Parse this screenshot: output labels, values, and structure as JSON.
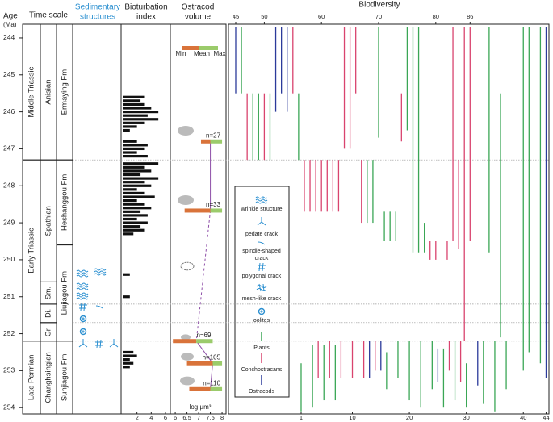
{
  "chart_data": {
    "type": "stratigraphic",
    "age_label": "Age",
    "age_unit": "(Ma)",
    "ylim": [
      243.63,
      254.17
    ],
    "yticks": [
      244,
      245,
      246,
      247,
      248,
      249,
      250,
      251,
      252,
      253,
      254
    ],
    "time_scale": {
      "title": "Time scale",
      "periods": [
        {
          "label": "Middle Triassic",
          "from": 243.63,
          "to": 247.3
        },
        {
          "label": "Early Triassic",
          "from": 247.3,
          "to": 252.2
        },
        {
          "label": "Late Permian",
          "from": 252.2,
          "to": 254.17
        }
      ],
      "stages": [
        {
          "label": "Anisian",
          "from": 243.63,
          "to": 247.3
        },
        {
          "label": "Spathian",
          "from": 247.3,
          "to": 250.6
        },
        {
          "label": "Changhsingian",
          "from": 252.2,
          "to": 254.17
        }
      ],
      "members": [
        {
          "label": "Sm.",
          "from": 250.6,
          "to": 251.2
        },
        {
          "label": "Di.",
          "from": 251.2,
          "to": 251.7
        },
        {
          "label": "Gr.",
          "from": 251.7,
          "to": 252.2
        }
      ],
      "formations": [
        {
          "label": "Ermaying Fm",
          "from": 243.63,
          "to": 247.3
        },
        {
          "label": "Heshanggou Fm",
          "from": 247.3,
          "to": 249.6
        },
        {
          "label": "Liujiagou Fm",
          "from": 249.6,
          "to": 252.2
        },
        {
          "label": "Sunjiagou Fm",
          "from": 252.2,
          "to": 254.17
        }
      ]
    },
    "sedimentary": {
      "title": [
        "Sedimentary",
        "structures"
      ],
      "color": "#2a8fd0"
    },
    "bioturbation": {
      "title": [
        "Bioturbation",
        "index"
      ],
      "xlim": [
        0,
        6.57
      ],
      "xticks": [
        2,
        4,
        6
      ],
      "ages": [
        245.6,
        245.7,
        245.8,
        245.9,
        246.0,
        246.1,
        246.2,
        246.3,
        246.4,
        246.5,
        246.8,
        246.9,
        247.0,
        247.1,
        247.2,
        247.4,
        247.5,
        247.6,
        247.7,
        247.8,
        247.9,
        248.0,
        248.1,
        248.2,
        248.3,
        248.4,
        248.5,
        248.6,
        248.7,
        248.8,
        248.9,
        249.0,
        249.1,
        249.2,
        249.3,
        250.4,
        251.0,
        252.5,
        252.6,
        252.7,
        252.8,
        252.9
      ],
      "values": [
        3,
        2.5,
        3,
        4,
        5,
        3.5,
        5,
        3,
        2,
        1,
        2,
        3.5,
        3,
        2,
        3.5,
        5,
        3,
        4,
        2.5,
        5,
        3,
        4,
        2,
        3,
        4.5,
        2,
        3,
        4,
        2.5,
        3.5,
        2,
        3.5,
        2.5,
        3,
        1.5,
        1,
        1,
        1.5,
        2,
        1,
        1.5,
        1
      ]
    },
    "ostracod": {
      "title": [
        "Ostracod",
        "volume"
      ],
      "x_label": "log µm³",
      "xlim": [
        5.79,
        8.17
      ],
      "xticks": [
        6,
        6.5,
        7,
        7.5,
        8
      ],
      "ages": [
        246.8,
        248.67,
        252.2,
        252.8,
        253.5
      ],
      "min": [
        7.1,
        6.4,
        5.9,
        6.5,
        6.6
      ],
      "mean": [
        7.5,
        7.5,
        6.9,
        7.6,
        7.5
      ],
      "max": [
        8.0,
        8.0,
        7.6,
        8.0,
        8.0
      ],
      "n_labels": [
        "n=27",
        "n=33",
        "n=69",
        "n=105",
        "n=110"
      ],
      "key": {
        "min": "Min",
        "mean": "Mean",
        "max": "Max"
      },
      "min_color": "#d9733a",
      "max_color": "#9bcb6b",
      "mean_line_color": "#8e4fa8"
    },
    "biodiversity": {
      "title": "Biodiversity",
      "xlim_upper": [
        43.73,
        99.8
      ],
      "xticks_upper": [
        45,
        50,
        60,
        70,
        80,
        86
      ],
      "xlim_lower": [
        -11.75,
        44.5
      ],
      "xticks_lower": [
        1,
        10,
        20,
        30,
        40,
        44
      ],
      "series": [
        {
          "name": "Plants",
          "color": "#3aa655",
          "upper": [
            [
              46,
              243.7,
              245.5
            ],
            [
              48,
              245.5,
              247.3
            ],
            [
              49,
              245.5,
              247.3
            ],
            [
              51,
              245.5,
              247.3
            ],
            [
              56,
              245.5,
              247.3
            ],
            [
              68,
              247.3,
              249.0
            ],
            [
              69,
              247.3,
              249.0
            ],
            [
              70,
              243.7,
              246.7
            ],
            [
              71,
              248.7,
              249.5
            ],
            [
              72,
              248.7,
              249.5
            ],
            [
              73,
              248.7,
              249.5
            ],
            [
              75,
              243.7,
              246.5
            ],
            [
              76,
              243.7,
              249.8
            ],
            [
              77,
              243.7,
              249.8
            ],
            [
              78,
              249.0,
              249.8
            ]
          ],
          "lower": [
            [
              1,
              252.8,
              254.1
            ],
            [
              3,
              252.3,
              254.0
            ],
            [
              5,
              252.3,
              253.8
            ],
            [
              7,
              252.3,
              253.8
            ],
            [
              16,
              252.5,
              253.5
            ],
            [
              18,
              252.2,
              253.2
            ],
            [
              20,
              252.2,
              253.8
            ],
            [
              22,
              252.2,
              254.0
            ],
            [
              24,
              252.2,
              253.5
            ],
            [
              26,
              252.4,
              254.0
            ],
            [
              28,
              252.2,
              253.8
            ],
            [
              30,
              252.8,
              254.0
            ],
            [
              33,
              252.2,
              253.9
            ],
            [
              34,
              243.7,
              249.8
            ],
            [
              35,
              252.2,
              254.1
            ],
            [
              36,
              245.5,
              252.1
            ],
            [
              37,
              252.2,
              253.5
            ],
            [
              40,
              243.7,
              253.0
            ],
            [
              41,
              243.7,
              252.5
            ],
            [
              43,
              243.7,
              252.8
            ]
          ]
        },
        {
          "name": "Conchostracans",
          "color": "#d9436e",
          "upper": [
            [
              47,
              245.5,
              247.3
            ],
            [
              50,
              245.5,
              247.3
            ],
            [
              55,
              243.7,
              245.5
            ],
            [
              57,
              247.3,
              248.7
            ],
            [
              58,
              247.3,
              248.7
            ],
            [
              59,
              247.3,
              248.7
            ],
            [
              60,
              247.3,
              248.7
            ],
            [
              61,
              247.3,
              248.7
            ],
            [
              62,
              247.3,
              248.7
            ],
            [
              63,
              247.3,
              248.7
            ],
            [
              64,
              243.7,
              247.0
            ],
            [
              65,
              243.7,
              247.0
            ],
            [
              66,
              243.7,
              245.5
            ],
            [
              67,
              247.3,
              249.0
            ],
            [
              74,
              245.5,
              246.8
            ],
            [
              79,
              249.5,
              250.0
            ],
            [
              80,
              249.5,
              250.0
            ],
            [
              82,
              249.5,
              250.0
            ],
            [
              83,
              243.7,
              249.5
            ],
            [
              84,
              247.3,
              249.7
            ],
            [
              85,
              243.7,
              252.2
            ],
            [
              86,
              243.7,
              249.5
            ]
          ],
          "lower": [
            [
              4,
              252.2,
              253.2
            ],
            [
              6,
              252.2,
              253.2
            ],
            [
              8,
              252.2,
              253.2
            ],
            [
              10,
              252.2,
              253.2
            ],
            [
              12,
              252.2,
              253.2
            ],
            [
              14,
              252.2,
              253.0
            ],
            [
              27,
              252.2,
              253.0
            ],
            [
              29,
              252.2,
              253.3
            ]
          ]
        },
        {
          "name": "Ostracods",
          "color": "#2b3a9a",
          "upper": [
            [
              45,
              243.7,
              245.5
            ],
            [
              52,
              243.7,
              246.0
            ],
            [
              53,
              243.7,
              245.5
            ],
            [
              54,
              243.7,
              246.0
            ]
          ],
          "lower": [
            [
              13,
              252.2,
              253.2
            ],
            [
              15,
              252.2,
              253.0
            ],
            [
              25,
              252.4,
              253.3
            ],
            [
              32,
              252.2,
              253.4
            ],
            [
              44,
              243.7,
              253.2
            ]
          ]
        }
      ]
    },
    "legend": {
      "structures": [
        "wrinkle structure",
        "pedate crack",
        [
          "spindle-shaped",
          "crack"
        ],
        "polygonal crack",
        "mesh-like crack",
        "oolites"
      ]
    }
  }
}
